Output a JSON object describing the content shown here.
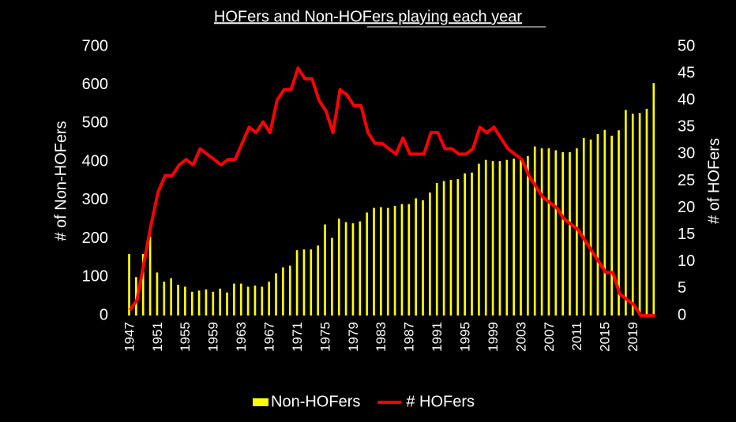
{
  "chart_data": {
    "type": "bar",
    "title": "HOFers and Non-HOFers playing each year",
    "x": [
      1947,
      1948,
      1949,
      1950,
      1951,
      1952,
      1953,
      1954,
      1955,
      1956,
      1957,
      1958,
      1959,
      1960,
      1961,
      1962,
      1963,
      1964,
      1965,
      1966,
      1967,
      1968,
      1969,
      1970,
      1971,
      1972,
      1973,
      1974,
      1975,
      1976,
      1977,
      1978,
      1979,
      1980,
      1981,
      1982,
      1983,
      1984,
      1985,
      1986,
      1987,
      1988,
      1989,
      1990,
      1991,
      1992,
      1993,
      1994,
      1995,
      1996,
      1997,
      1998,
      1999,
      2000,
      2001,
      2002,
      2003,
      2004,
      2005,
      2006,
      2007,
      2008,
      2009,
      2010,
      2011,
      2012,
      2013,
      2014,
      2015,
      2016,
      2017,
      2018,
      2019,
      2020,
      2021,
      2022
    ],
    "xlim": [
      1946,
      2023
    ],
    "xticks": [
      1947,
      1951,
      1955,
      1959,
      1963,
      1967,
      1971,
      1975,
      1979,
      1983,
      1987,
      1991,
      1995,
      1999,
      2003,
      2007,
      2011,
      2015,
      2019
    ],
    "ylabel": "# of Non-HOFers",
    "y2label": "# of HOFers",
    "ylim": [
      0,
      700
    ],
    "yticks": [
      0,
      100,
      200,
      300,
      400,
      500,
      600,
      700
    ],
    "y2lim": [
      0,
      50
    ],
    "y2ticks": [
      0,
      5,
      10,
      15,
      20,
      25,
      30,
      35,
      40,
      45,
      50
    ],
    "legend": "bottom",
    "series": [
      {
        "name": "Non-HOFers",
        "color": "#ffff00",
        "type": "bar",
        "values": [
          160,
          100,
          160,
          205,
          112,
          88,
          97,
          80,
          75,
          62,
          65,
          68,
          62,
          70,
          60,
          83,
          83,
          75,
          78,
          75,
          88,
          110,
          125,
          130,
          170,
          172,
          172,
          182,
          237,
          202,
          252,
          243,
          240,
          245,
          268,
          280,
          282,
          280,
          285,
          290,
          290,
          305,
          300,
          320,
          345,
          350,
          353,
          355,
          370,
          372,
          395,
          405,
          402,
          402,
          405,
          408,
          410,
          415,
          440,
          435,
          435,
          430,
          425,
          425,
          435,
          462,
          458,
          472,
          483,
          468,
          482,
          535,
          525,
          527,
          538,
          605
        ]
      },
      {
        "name": "# HOFers",
        "color": "#ff0000",
        "type": "line",
        "axis": "y2",
        "values": [
          1,
          3,
          10,
          17,
          23,
          26,
          26,
          28,
          29,
          28,
          31,
          30,
          29,
          28,
          29,
          29,
          32,
          35,
          34,
          36,
          34,
          40,
          42,
          42,
          46,
          44,
          44,
          40,
          38,
          34,
          42,
          41,
          39,
          39,
          34,
          32,
          32,
          31,
          30,
          33,
          30,
          30,
          30,
          34,
          34,
          31,
          31,
          30,
          30,
          31,
          35,
          34,
          35,
          33,
          31,
          30,
          29,
          26,
          24,
          22,
          21,
          20,
          18,
          17,
          16,
          14,
          12,
          10,
          8,
          8,
          4,
          3,
          2,
          0,
          0,
          0
        ]
      }
    ]
  }
}
